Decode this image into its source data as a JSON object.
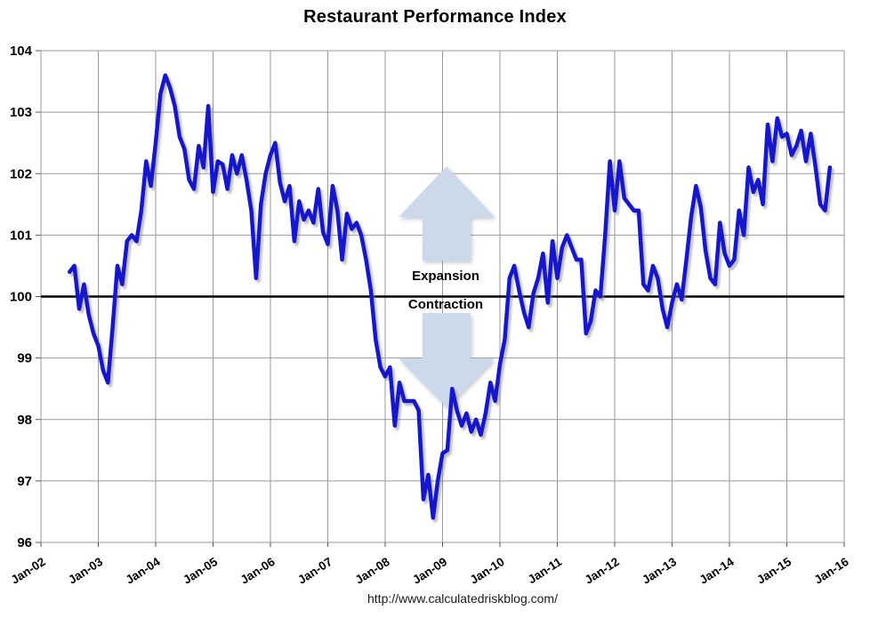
{
  "title": "Restaurant Performance Index",
  "footer_url": "http://www.calculatedriskblog.com/",
  "annotations": {
    "above_line": "Expansion",
    "below_line": "Contraction"
  },
  "colors": {
    "line": "#1414cc",
    "grid": "#999999",
    "baseline": "#000000",
    "arrow": "#ccd9eb",
    "tick_text": "#000000",
    "background": "#ffffff"
  },
  "chart_data": {
    "type": "line",
    "title": "Restaurant Performance Index",
    "xlabel": "",
    "ylabel": "",
    "ylim": [
      96,
      104
    ],
    "baseline_value": 100,
    "grid": true,
    "legend_position": "none",
    "y_ticks": [
      96,
      97,
      98,
      99,
      100,
      101,
      102,
      103,
      104
    ],
    "x_tick_labels": [
      "Jan-02",
      "Jan-03",
      "Jan-04",
      "Jan-05",
      "Jan-06",
      "Jan-07",
      "Jan-08",
      "Jan-09",
      "Jan-10",
      "Jan-11",
      "Jan-12",
      "Jan-13",
      "Jan-14",
      "Jan-15",
      "Jan-16"
    ],
    "x_axis_months_total": 168,
    "series": [
      {
        "name": "Restaurant Performance Index",
        "points": [
          [
            "Jul-02",
            100.4
          ],
          [
            "Aug-02",
            100.5
          ],
          [
            "Sep-02",
            99.8
          ],
          [
            "Oct-02",
            100.2
          ],
          [
            "Nov-02",
            99.7
          ],
          [
            "Dec-02",
            99.4
          ],
          [
            "Jan-03",
            99.2
          ],
          [
            "Feb-03",
            98.8
          ],
          [
            "Mar-03",
            98.6
          ],
          [
            "Apr-03",
            99.5
          ],
          [
            "May-03",
            100.5
          ],
          [
            "Jun-03",
            100.2
          ],
          [
            "Jul-03",
            100.9
          ],
          [
            "Aug-03",
            101.0
          ],
          [
            "Sep-03",
            100.9
          ],
          [
            "Oct-03",
            101.4
          ],
          [
            "Nov-03",
            102.2
          ],
          [
            "Dec-03",
            101.8
          ],
          [
            "Jan-04",
            102.5
          ],
          [
            "Feb-04",
            103.3
          ],
          [
            "Mar-04",
            103.6
          ],
          [
            "Apr-04",
            103.4
          ],
          [
            "May-04",
            103.1
          ],
          [
            "Jun-04",
            102.6
          ],
          [
            "Jul-04",
            102.4
          ],
          [
            "Aug-04",
            101.9
          ],
          [
            "Sep-04",
            101.75
          ],
          [
            "Oct-04",
            102.45
          ],
          [
            "Nov-04",
            102.1
          ],
          [
            "Dec-04",
            103.1
          ],
          [
            "Jan-05",
            101.7
          ],
          [
            "Feb-05",
            102.2
          ],
          [
            "Mar-05",
            102.15
          ],
          [
            "Apr-05",
            101.75
          ],
          [
            "May-05",
            102.3
          ],
          [
            "Jun-05",
            102.0
          ],
          [
            "Jul-05",
            102.3
          ],
          [
            "Aug-05",
            101.9
          ],
          [
            "Sep-05",
            101.4
          ],
          [
            "Oct-05",
            100.3
          ],
          [
            "Nov-05",
            101.5
          ],
          [
            "Dec-05",
            102.0
          ],
          [
            "Jan-06",
            102.3
          ],
          [
            "Feb-06",
            102.5
          ],
          [
            "Mar-06",
            101.85
          ],
          [
            "Apr-06",
            101.55
          ],
          [
            "May-06",
            101.8
          ],
          [
            "Jun-06",
            100.9
          ],
          [
            "Jul-06",
            101.55
          ],
          [
            "Aug-06",
            101.25
          ],
          [
            "Sep-06",
            101.4
          ],
          [
            "Oct-06",
            101.2
          ],
          [
            "Nov-06",
            101.75
          ],
          [
            "Dec-06",
            101.05
          ],
          [
            "Jan-07",
            100.85
          ],
          [
            "Feb-07",
            101.8
          ],
          [
            "Mar-07",
            101.4
          ],
          [
            "Apr-07",
            100.6
          ],
          [
            "May-07",
            101.35
          ],
          [
            "Jun-07",
            101.1
          ],
          [
            "Jul-07",
            101.2
          ],
          [
            "Aug-07",
            101.0
          ],
          [
            "Sep-07",
            100.6
          ],
          [
            "Oct-07",
            100.1
          ],
          [
            "Nov-07",
            99.3
          ],
          [
            "Dec-07",
            98.85
          ],
          [
            "Jan-08",
            98.7
          ],
          [
            "Feb-08",
            98.85
          ],
          [
            "Mar-08",
            97.9
          ],
          [
            "Apr-08",
            98.6
          ],
          [
            "May-08",
            98.3
          ],
          [
            "Jun-08",
            98.3
          ],
          [
            "Jul-08",
            98.3
          ],
          [
            "Aug-08",
            98.15
          ],
          [
            "Sep-08",
            96.7
          ],
          [
            "Oct-08",
            97.1
          ],
          [
            "Nov-08",
            96.4
          ],
          [
            "Dec-08",
            97.0
          ],
          [
            "Jan-09",
            97.45
          ],
          [
            "Feb-09",
            97.5
          ],
          [
            "Mar-09",
            98.5
          ],
          [
            "Apr-09",
            98.15
          ],
          [
            "May-09",
            97.9
          ],
          [
            "Jun-09",
            98.1
          ],
          [
            "Jul-09",
            97.8
          ],
          [
            "Aug-09",
            98.0
          ],
          [
            "Sep-09",
            97.75
          ],
          [
            "Oct-09",
            98.1
          ],
          [
            "Nov-09",
            98.6
          ],
          [
            "Dec-09",
            98.3
          ],
          [
            "Jan-10",
            98.9
          ],
          [
            "Feb-10",
            99.3
          ],
          [
            "Mar-10",
            100.3
          ],
          [
            "Apr-10",
            100.5
          ],
          [
            "May-10",
            100.1
          ],
          [
            "Jun-10",
            99.75
          ],
          [
            "Jul-10",
            99.5
          ],
          [
            "Aug-10",
            100.05
          ],
          [
            "Sep-10",
            100.3
          ],
          [
            "Oct-10",
            100.7
          ],
          [
            "Nov-10",
            99.9
          ],
          [
            "Dec-10",
            100.9
          ],
          [
            "Jan-11",
            100.3
          ],
          [
            "Feb-11",
            100.8
          ],
          [
            "Mar-11",
            101.0
          ],
          [
            "Apr-11",
            100.8
          ],
          [
            "May-11",
            100.6
          ],
          [
            "Jun-11",
            100.6
          ],
          [
            "Jul-11",
            99.4
          ],
          [
            "Aug-11",
            99.6
          ],
          [
            "Sep-11",
            100.1
          ],
          [
            "Oct-11",
            100.0
          ],
          [
            "Nov-11",
            101.0
          ],
          [
            "Dec-11",
            102.2
          ],
          [
            "Jan-12",
            101.4
          ],
          [
            "Feb-12",
            102.2
          ],
          [
            "Mar-12",
            101.6
          ],
          [
            "Apr-12",
            101.5
          ],
          [
            "May-12",
            101.4
          ],
          [
            "Jun-12",
            101.4
          ],
          [
            "Jul-12",
            100.2
          ],
          [
            "Aug-12",
            100.1
          ],
          [
            "Sep-12",
            100.5
          ],
          [
            "Oct-12",
            100.3
          ],
          [
            "Nov-12",
            99.8
          ],
          [
            "Dec-12",
            99.5
          ],
          [
            "Jan-13",
            99.9
          ],
          [
            "Feb-13",
            100.2
          ],
          [
            "Mar-13",
            99.95
          ],
          [
            "Apr-13",
            100.6
          ],
          [
            "May-13",
            101.3
          ],
          [
            "Jun-13",
            101.8
          ],
          [
            "Jul-13",
            101.45
          ],
          [
            "Aug-13",
            100.75
          ],
          [
            "Sep-13",
            100.3
          ],
          [
            "Oct-13",
            100.2
          ],
          [
            "Nov-13",
            101.2
          ],
          [
            "Dec-13",
            100.7
          ],
          [
            "Jan-14",
            100.5
          ],
          [
            "Feb-14",
            100.6
          ],
          [
            "Mar-14",
            101.4
          ],
          [
            "Apr-14",
            101.0
          ],
          [
            "May-14",
            102.1
          ],
          [
            "Jun-14",
            101.7
          ],
          [
            "Jul-14",
            101.9
          ],
          [
            "Aug-14",
            101.5
          ],
          [
            "Sep-14",
            102.8
          ],
          [
            "Oct-14",
            102.2
          ],
          [
            "Nov-14",
            102.9
          ],
          [
            "Dec-14",
            102.6
          ],
          [
            "Jan-15",
            102.65
          ],
          [
            "Feb-15",
            102.3
          ],
          [
            "Mar-15",
            102.45
          ],
          [
            "Apr-15",
            102.7
          ],
          [
            "May-15",
            102.2
          ],
          [
            "Jun-15",
            102.65
          ],
          [
            "Jul-15",
            102.1
          ],
          [
            "Aug-15",
            101.5
          ],
          [
            "Sep-15",
            101.4
          ],
          [
            "Oct-15",
            102.1
          ]
        ]
      }
    ]
  }
}
